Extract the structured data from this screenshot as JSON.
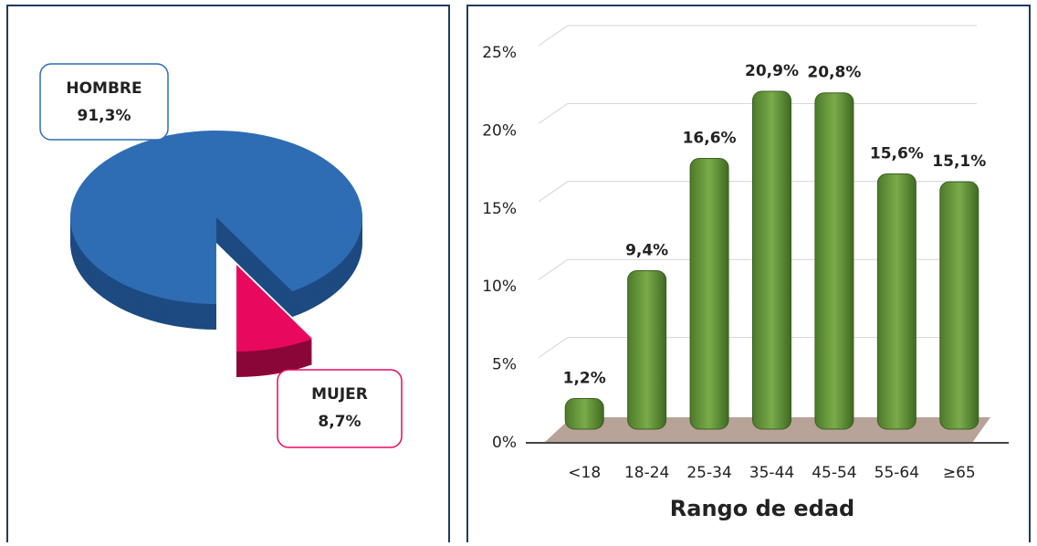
{
  "chart_data": [
    {
      "type": "pie",
      "categories": [
        "HOMBRE",
        "MUJER"
      ],
      "values": [
        91.3,
        8.7
      ],
      "value_labels": [
        "91,3%",
        "8,7%"
      ],
      "colors": [
        "#2e6db4",
        "#e8095e"
      ]
    },
    {
      "type": "bar",
      "categories": [
        "<18",
        "18-24",
        "25-34",
        "35-44",
        "45-54",
        "55-64",
        "≥65"
      ],
      "values": [
        1.2,
        9.4,
        16.6,
        20.9,
        20.8,
        15.6,
        15.1
      ],
      "value_labels": [
        "1,2%",
        "9,4%",
        "16,6%",
        "20,9%",
        "20,8%",
        "15,6%",
        "15,1%"
      ],
      "color": "#6a9a3c",
      "xlabel": "Rango de edad",
      "ylim": [
        0,
        25
      ],
      "yticks": [
        {
          "value": 0,
          "label": "0%"
        },
        {
          "value": 5,
          "label": "5%"
        },
        {
          "value": 10,
          "label": "10%"
        },
        {
          "value": 15,
          "label": "15%"
        },
        {
          "value": 20,
          "label": "20%"
        },
        {
          "value": 25,
          "label": "25%"
        }
      ],
      "grid": true
    }
  ]
}
